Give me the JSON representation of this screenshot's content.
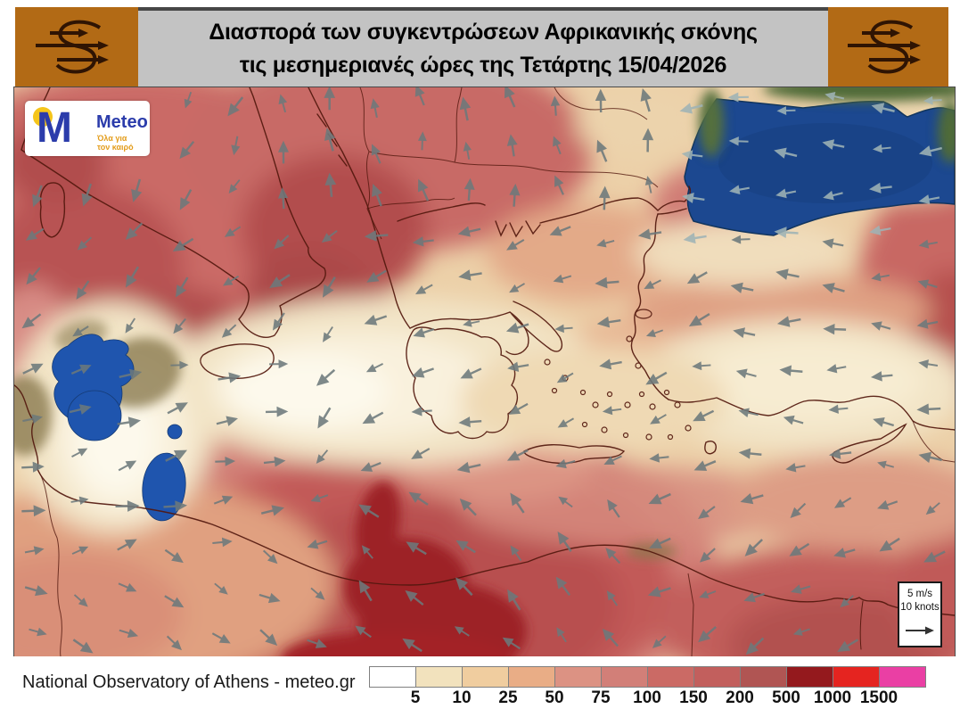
{
  "header": {
    "title_line1": "Διασπορά των συγκεντρώσεων Αφρικανικής σκόνης",
    "title_line2": "τις μεσημεριανές ώρες της Τετάρτης 15/04/2026"
  },
  "meteo_logo": {
    "brand": "Meteo",
    "tagline_line1": "Όλα για",
    "tagline_line2": "τον καιρό"
  },
  "wind_scale": {
    "speed_ms": "5 m/s",
    "speed_knots": "10 knots"
  },
  "footer": {
    "attribution": "National Observatory of Athens - meteo.gr"
  },
  "legend": {
    "values": [
      "5",
      "10",
      "25",
      "50",
      "75",
      "100",
      "150",
      "200",
      "500",
      "1000",
      "1500"
    ],
    "colors": [
      "#ffffff",
      "#f2e2bd",
      "#f0cd9f",
      "#e9ad86",
      "#dc9283",
      "#d27f78",
      "#cb6a65",
      "#c25f5d",
      "#b05553",
      "#94191d",
      "#e52420",
      "#ea3fa4"
    ]
  },
  "map": {
    "arrow_color": "#6d797c",
    "arrow_color_over_sea": "#9fb3b6",
    "black_sea_color": "#1c4890",
    "lake_color": "#1f55ae"
  }
}
